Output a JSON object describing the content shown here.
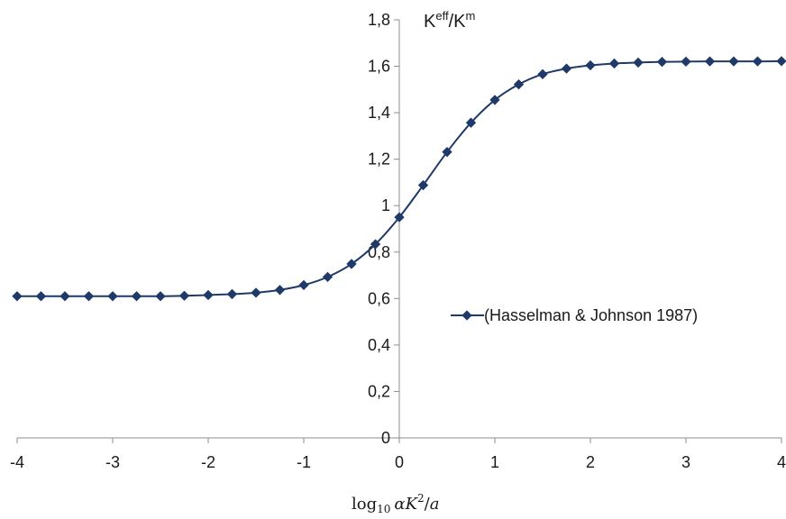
{
  "chart_data": {
    "type": "line",
    "ylabel": {
      "base1": "K",
      "sup1": "eff",
      "sep": "/K",
      "sup2": "m"
    },
    "xlabel": {
      "func": "log",
      "sub": "10",
      "alpha": "α",
      "K": "K",
      "exp": "2",
      "slash": "/",
      "a": "a"
    },
    "xlim": [
      -4,
      4
    ],
    "ylim": [
      0,
      1.8
    ],
    "x_ticks": [
      {
        "value": -4,
        "label": "-4"
      },
      {
        "value": -3,
        "label": "-3"
      },
      {
        "value": -2,
        "label": "-2"
      },
      {
        "value": -1,
        "label": "-1"
      },
      {
        "value": 0,
        "label": "0"
      },
      {
        "value": 1,
        "label": "1"
      },
      {
        "value": 2,
        "label": "2"
      },
      {
        "value": 3,
        "label": "3"
      },
      {
        "value": 4,
        "label": "4"
      }
    ],
    "y_ticks": [
      {
        "value": 0,
        "label": "0"
      },
      {
        "value": 0.2,
        "label": "0,2"
      },
      {
        "value": 0.4,
        "label": "0,4"
      },
      {
        "value": 0.6,
        "label": "0,6"
      },
      {
        "value": 0.8,
        "label": "0,8"
      },
      {
        "value": 1.0,
        "label": "1"
      },
      {
        "value": 1.2,
        "label": "1,2"
      },
      {
        "value": 1.4,
        "label": "1,4"
      },
      {
        "value": 1.6,
        "label": "1,6"
      },
      {
        "value": 1.8,
        "label": "1,8"
      }
    ],
    "grid": false,
    "legend_position": "right",
    "series": [
      {
        "name": "(Hasselman & Johnson 1987)",
        "color": "#1f3a68",
        "marker": "diamond",
        "x": [
          -4,
          -3.75,
          -3.5,
          -3.25,
          -3,
          -2.75,
          -2.5,
          -2.25,
          -2,
          -1.75,
          -1.5,
          -1.25,
          -1,
          -0.75,
          -0.5,
          -0.25,
          0,
          0.25,
          0.5,
          0.75,
          1,
          1.25,
          1.5,
          1.75,
          2,
          2.25,
          2.5,
          2.75,
          3,
          3.25,
          3.5,
          3.75,
          4
        ],
        "y": [
          0.61,
          0.61,
          0.61,
          0.61,
          0.61,
          0.61,
          0.61,
          0.612,
          0.615,
          0.619,
          0.625,
          0.637,
          0.658,
          0.693,
          0.749,
          0.834,
          0.95,
          1.088,
          1.231,
          1.357,
          1.455,
          1.522,
          1.566,
          1.59,
          1.604,
          1.612,
          1.616,
          1.619,
          1.62,
          1.621,
          1.621,
          1.621,
          1.622
        ]
      }
    ]
  }
}
